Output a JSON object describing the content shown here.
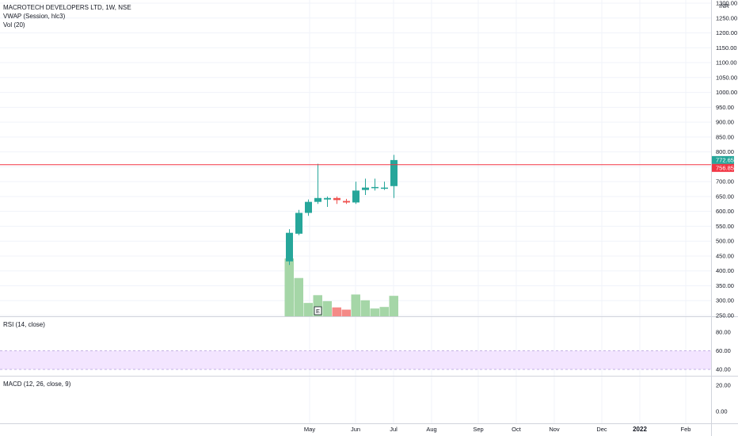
{
  "header": {
    "title": "MACROTECH DEVELOPERS LTD, 1W, NSE",
    "vwap_label": "VWAP (Session, hlc3)",
    "vol_label": "Vol (20)"
  },
  "price_axis": {
    "currency": "INR",
    "ticks": [
      "1300.00",
      "1250.00",
      "1200.00",
      "1150.00",
      "1100.00",
      "1050.00",
      "1000.00",
      "950.00",
      "900.00",
      "850.00",
      "800.00",
      "750.00",
      "700.00",
      "650.00",
      "600.00",
      "550.00",
      "500.00",
      "450.00",
      "400.00",
      "350.00",
      "300.00",
      "250.00"
    ],
    "last_price_label": "772.65",
    "ref_price_label": "756.85",
    "ref_price": 756.85,
    "last_price": 772.65,
    "last_price_color": "#26a69a",
    "ref_price_color": "#f23645"
  },
  "time_axis": {
    "labels": [
      "May",
      "Jun",
      "Jul",
      "Aug",
      "Sep",
      "Oct",
      "Nov",
      "Dec",
      "2022",
      "Feb"
    ]
  },
  "rsi": {
    "label": "RSI (14, close)",
    "ticks": [
      "80.00",
      "60.00",
      "40.00"
    ],
    "band": [
      40,
      60
    ],
    "band_color": "#f3e5ff"
  },
  "macd": {
    "label": "MACD (12, 26, close, 9)",
    "ticks": [
      "20.00",
      "0.00"
    ]
  },
  "earnings_marker": "E",
  "colors": {
    "up": "#26a69a",
    "down": "#ef5350",
    "vol_up": "#a5d6a7",
    "vol_down": "#f48a87"
  },
  "chart_data": {
    "type": "candlestick",
    "title": "MACROTECH DEVELOPERS LTD, 1W, NSE",
    "ylim": [
      250,
      1300
    ],
    "candles": [
      {
        "x": "2021-04-19",
        "open": 432,
        "high": 540,
        "low": 420,
        "close": 528
      },
      {
        "x": "2021-04-26",
        "open": 525,
        "high": 605,
        "low": 520,
        "close": 595
      },
      {
        "x": "2021-05-03",
        "open": 595,
        "high": 640,
        "low": 585,
        "close": 632
      },
      {
        "x": "2021-05-10",
        "open": 632,
        "high": 760,
        "low": 625,
        "close": 645
      },
      {
        "x": "2021-05-17",
        "open": 640,
        "high": 650,
        "low": 615,
        "close": 645
      },
      {
        "x": "2021-05-24",
        "open": 645,
        "high": 650,
        "low": 625,
        "close": 638
      },
      {
        "x": "2021-05-31",
        "open": 635,
        "high": 642,
        "low": 625,
        "close": 630
      },
      {
        "x": "2021-06-07",
        "open": 630,
        "high": 700,
        "low": 625,
        "close": 670
      },
      {
        "x": "2021-06-14",
        "open": 672,
        "high": 710,
        "low": 655,
        "close": 680
      },
      {
        "x": "2021-06-21",
        "open": 678,
        "high": 710,
        "low": 670,
        "close": 682
      },
      {
        "x": "2021-06-28",
        "open": 680,
        "high": 700,
        "low": 672,
        "close": 680
      },
      {
        "x": "2021-07-05",
        "open": 685,
        "high": 790,
        "low": 645,
        "close": 772.65
      }
    ],
    "volume": [
      260,
      172,
      60,
      95,
      68,
      40,
      30,
      98,
      72,
      35,
      42,
      92
    ],
    "volume_units": "relative"
  }
}
